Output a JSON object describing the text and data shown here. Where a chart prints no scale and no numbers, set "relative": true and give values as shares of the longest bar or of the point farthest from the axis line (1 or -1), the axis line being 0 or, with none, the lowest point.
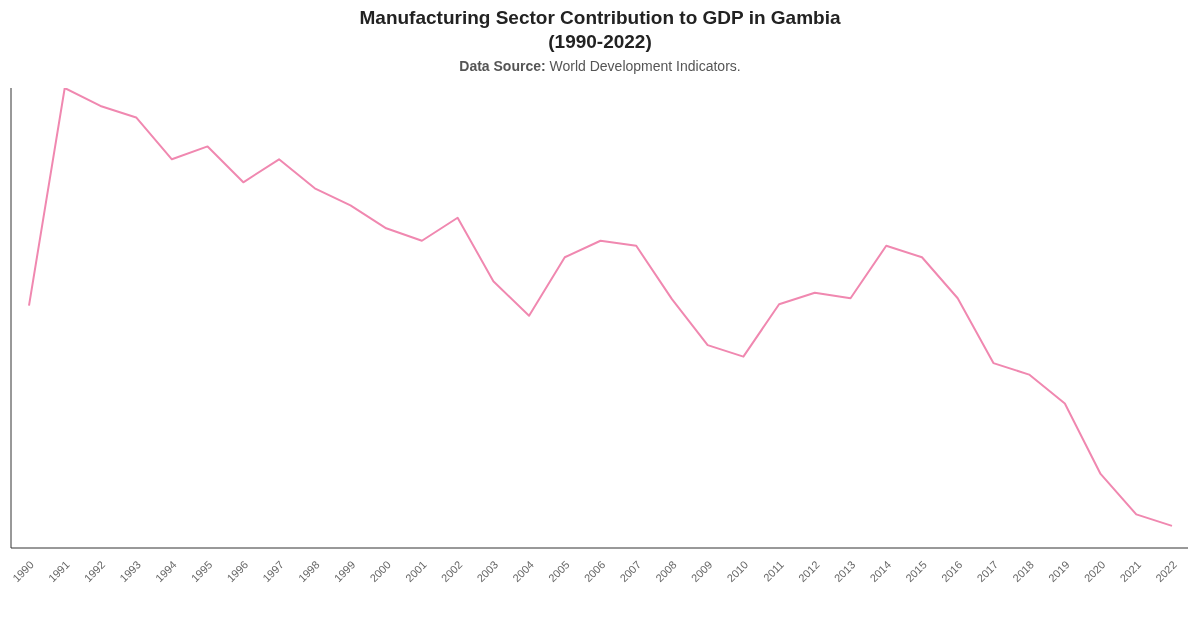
{
  "chart_data": {
    "type": "line",
    "title": "Manufacturing Sector Contribution to GDP in Gambia\n(1990-2022)",
    "subtitle": "Data Source: World Development Indicators.",
    "relative": true,
    "categories": [
      "1990",
      "1991",
      "1992",
      "1993",
      "1994",
      "1995",
      "1996",
      "1997",
      "1998",
      "1999",
      "2000",
      "2001",
      "2002",
      "2003",
      "2004",
      "2005",
      "2006",
      "2007",
      "2008",
      "2009",
      "2010",
      "2011",
      "2012",
      "2013",
      "2014",
      "2015",
      "2016",
      "2017",
      "2018",
      "2019",
      "2020",
      "2021",
      "2022"
    ],
    "series": [
      {
        "color": "#f088b0",
        "values": [
          0.527,
          1.0,
          0.961,
          0.936,
          0.845,
          0.873,
          0.795,
          0.845,
          0.782,
          0.745,
          0.695,
          0.668,
          0.718,
          0.58,
          0.505,
          0.632,
          0.668,
          0.657,
          0.541,
          0.441,
          0.416,
          0.53,
          0.555,
          0.543,
          0.657,
          0.632,
          0.543,
          0.402,
          0.377,
          0.314,
          0.161,
          0.073,
          0.048
        ]
      }
    ],
    "marker": "none"
  }
}
